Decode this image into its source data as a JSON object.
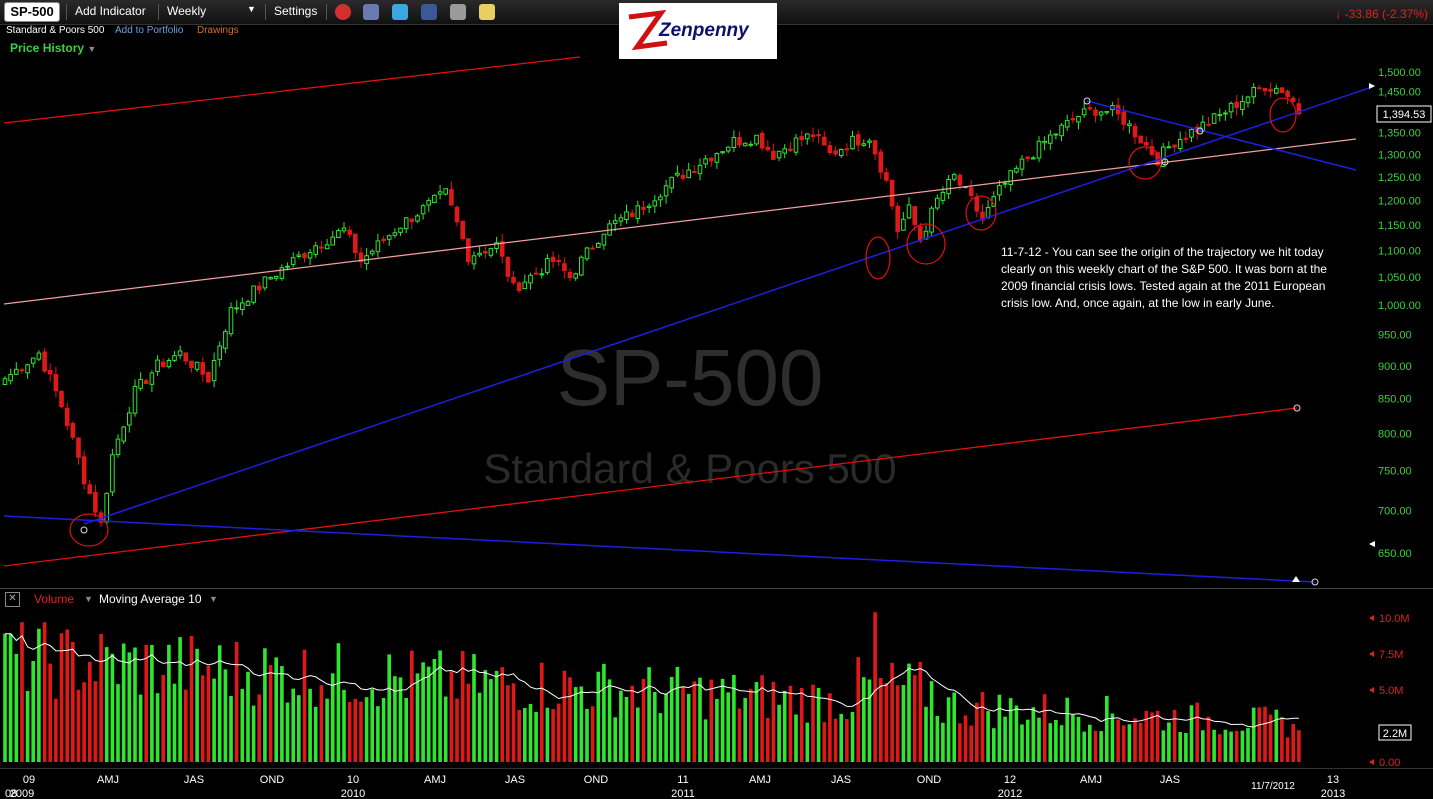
{
  "toolbar": {
    "symbol": "SP-500",
    "add_indicator": "Add Indicator",
    "interval": "Weekly",
    "settings": "Settings"
  },
  "subbar": {
    "name": "Standard & Poors 500",
    "add_portfolio": "Add to Portfolio",
    "drawings": "Drawings"
  },
  "logo": {
    "text": "Zenpenny"
  },
  "change": {
    "text": "-33.86 (-2.37%)",
    "color": "#e02020"
  },
  "price_panel": {
    "label": "Price History",
    "last_price": "1,394.53",
    "watermark_symbol": "SP-500",
    "watermark_name": "Standard & Poors 500",
    "y_ticks": [
      "1,500.00",
      "1,450.00",
      "1,400.00",
      "1,350.00",
      "1,300.00",
      "1,250.00",
      "1,200.00",
      "1,150.00",
      "1,100.00",
      "1,050.00",
      "1,000.00",
      "950.00",
      "900.00",
      "850.00",
      "800.00",
      "750.00",
      "700.00",
      "650.00"
    ]
  },
  "annotation": {
    "text": "11-7-12 - You can see the origin of the trajectory we hit today clearly on this weekly chart of the S&P 500. It was born at the 2009 financial crisis lows. Tested again at the 2011 European crisis low. And, once again, at the low in early June."
  },
  "volume_panel": {
    "label": "Volume",
    "ma_label": "Moving Average 10",
    "last_volume": "2.2M",
    "y_ticks": [
      "10.0M",
      "7.5M",
      "5.0M",
      "0.00"
    ]
  },
  "x_axis": {
    "labels": [
      "09",
      "AMJ",
      "JAS",
      "OND",
      "10",
      "AMJ",
      "JAS",
      "OND",
      "11",
      "AMJ",
      "JAS",
      "OND",
      "12",
      "AMJ",
      "JAS",
      "11/7/2012",
      "13"
    ],
    "years": [
      "08",
      "2009",
      "2010",
      "2011",
      "2012",
      "2013"
    ]
  },
  "colors": {
    "up": "#2ee62e",
    "down": "#e01818",
    "blue_line": "#1f1fe0",
    "red_line": "#e01010",
    "pink_line": "#f0a0a0"
  },
  "chart_data": {
    "type": "candlestick",
    "interval": "weekly",
    "ylim": [
      620,
      1510
    ],
    "volume_ylim": [
      0,
      11000000
    ],
    "anchors": [
      {
        "t": 0,
        "p": 880
      },
      {
        "t": 6,
        "p": 920
      },
      {
        "t": 10,
        "p": 840
      },
      {
        "t": 14,
        "p": 740
      },
      {
        "t": 17,
        "p": 683
      },
      {
        "t": 19,
        "p": 770
      },
      {
        "t": 23,
        "p": 860
      },
      {
        "t": 27,
        "p": 900
      },
      {
        "t": 31,
        "p": 920
      },
      {
        "t": 36,
        "p": 880
      },
      {
        "t": 40,
        "p": 990
      },
      {
        "t": 47,
        "p": 1050
      },
      {
        "t": 55,
        "p": 1110
      },
      {
        "t": 60,
        "p": 1140
      },
      {
        "t": 63,
        "p": 1080
      },
      {
        "t": 70,
        "p": 1150
      },
      {
        "t": 75,
        "p": 1190
      },
      {
        "t": 78,
        "p": 1215
      },
      {
        "t": 82,
        "p": 1090
      },
      {
        "t": 87,
        "p": 1110
      },
      {
        "t": 90,
        "p": 1030
      },
      {
        "t": 97,
        "p": 1080
      },
      {
        "t": 100,
        "p": 1050
      },
      {
        "t": 106,
        "p": 1140
      },
      {
        "t": 112,
        "p": 1180
      },
      {
        "t": 118,
        "p": 1240
      },
      {
        "t": 124,
        "p": 1290
      },
      {
        "t": 129,
        "p": 1330
      },
      {
        "t": 133,
        "p": 1340
      },
      {
        "t": 136,
        "p": 1300
      },
      {
        "t": 140,
        "p": 1330
      },
      {
        "t": 143,
        "p": 1345
      },
      {
        "t": 146,
        "p": 1300
      },
      {
        "t": 150,
        "p": 1330
      },
      {
        "t": 153,
        "p": 1340
      },
      {
        "t": 156,
        "p": 1240
      },
      {
        "t": 158,
        "p": 1140
      },
      {
        "t": 160,
        "p": 1180
      },
      {
        "t": 162,
        "p": 1120
      },
      {
        "t": 165,
        "p": 1200
      },
      {
        "t": 168,
        "p": 1250
      },
      {
        "t": 171,
        "p": 1200
      },
      {
        "t": 173,
        "p": 1160
      },
      {
        "t": 176,
        "p": 1220
      },
      {
        "t": 180,
        "p": 1280
      },
      {
        "t": 185,
        "p": 1340
      },
      {
        "t": 190,
        "p": 1390
      },
      {
        "t": 193,
        "p": 1405
      },
      {
        "t": 196,
        "p": 1400
      },
      {
        "t": 198,
        "p": 1380
      },
      {
        "t": 202,
        "p": 1320
      },
      {
        "t": 204,
        "p": 1290
      },
      {
        "t": 207,
        "p": 1330
      },
      {
        "t": 211,
        "p": 1360
      },
      {
        "t": 215,
        "p": 1390
      },
      {
        "t": 219,
        "p": 1430
      },
      {
        "t": 223,
        "p": 1465
      },
      {
        "t": 226,
        "p": 1455
      },
      {
        "t": 228,
        "p": 1425
      },
      {
        "t": 229,
        "p": 1395
      }
    ]
  }
}
